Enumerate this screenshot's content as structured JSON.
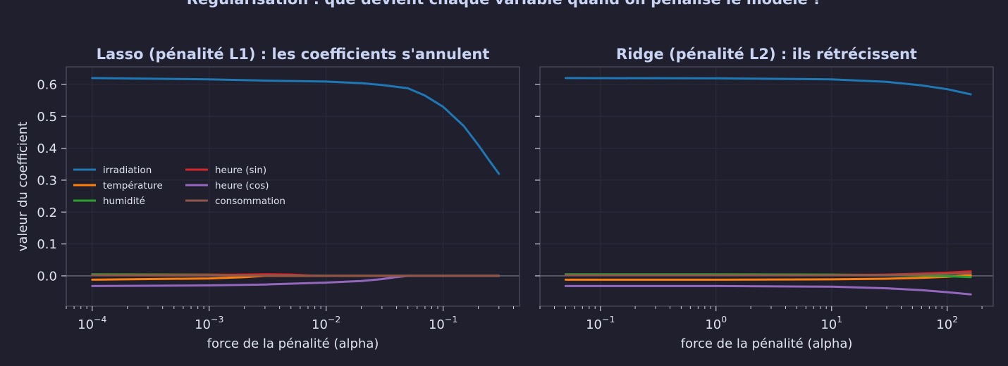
{
  "chart_data": {
    "title": "Régularisation : que devient chaque variable quand on pénalise le modèle ?",
    "series_colors": {
      "irradiation": "#1f77b4",
      "température": "#ff7f0e",
      "humidité": "#2ca02c",
      "heure (sin)": "#d62728",
      "heure (cos)": "#9467bd",
      "consommation": "#8c564b"
    },
    "legend_position": "center-left",
    "grid": true,
    "panels": [
      {
        "type": "line",
        "title": "Lasso (pénalité L1) : les coefficients s'annulent",
        "xlabel": "force de la pénalité (alpha)",
        "ylabel": "valeur du coefficient",
        "xscale": "log",
        "xlim": [
          6e-05,
          0.45
        ],
        "ylim": [
          -0.095,
          0.655
        ],
        "x_ticks": [
          {
            "value": 0.0001,
            "base": "10",
            "exp": "−4"
          },
          {
            "value": 0.001,
            "base": "10",
            "exp": "−3"
          },
          {
            "value": 0.01,
            "base": "10",
            "exp": "−2"
          },
          {
            "value": 0.1,
            "base": "10",
            "exp": "−1"
          }
        ],
        "y_ticks": [
          "0.0",
          "0.1",
          "0.2",
          "0.3",
          "0.4",
          "0.5",
          "0.6"
        ],
        "y_tick_values": [
          0,
          0.1,
          0.2,
          0.3,
          0.4,
          0.5,
          0.6
        ],
        "series": [
          {
            "name": "irradiation",
            "x": [
              0.0001,
              0.001,
              0.003,
              0.01,
              0.02,
              0.03,
              0.05,
              0.07,
              0.1,
              0.15,
              0.2,
              0.25,
              0.3
            ],
            "y": [
              0.62,
              0.616,
              0.612,
              0.609,
              0.604,
              0.598,
              0.588,
              0.565,
              0.53,
              0.47,
              0.41,
              0.36,
              0.32
            ]
          },
          {
            "name": "température",
            "x": [
              0.0001,
              0.001,
              0.002,
              0.003,
              0.01,
              0.3
            ],
            "y": [
              -0.012,
              -0.008,
              -0.004,
              0,
              0,
              0
            ]
          },
          {
            "name": "humidité",
            "x": [
              0.0001,
              0.001,
              0.003,
              0.01,
              0.3
            ],
            "y": [
              0.005,
              0.004,
              0.002,
              0,
              0
            ]
          },
          {
            "name": "heure (sin)",
            "x": [
              0.0001,
              0.001,
              0.002,
              0.003,
              0.005,
              0.008,
              0.3
            ],
            "y": [
              0.002,
              0.003,
              0.004,
              0.005,
              0.004,
              0,
              0
            ]
          },
          {
            "name": "heure (cos)",
            "x": [
              0.0001,
              0.001,
              0.003,
              0.01,
              0.02,
              0.03,
              0.04,
              0.05,
              0.3
            ],
            "y": [
              -0.032,
              -0.03,
              -0.027,
              -0.021,
              -0.016,
              -0.01,
              -0.004,
              0,
              0
            ]
          },
          {
            "name": "consommation",
            "x": [
              0.0001,
              0.001,
              0.003,
              0.01,
              0.3
            ],
            "y": [
              0.002,
              0.0015,
              0.001,
              0,
              0
            ]
          }
        ]
      },
      {
        "type": "line",
        "title": "Ridge (pénalité L2) : ils rétrécissent",
        "xlabel": "force de la pénalité (alpha)",
        "xscale": "log",
        "xlim": [
          0.03,
          250
        ],
        "ylim": [
          -0.095,
          0.655
        ],
        "x_ticks": [
          {
            "value": 0.1,
            "base": "10",
            "exp": "−1"
          },
          {
            "value": 1,
            "base": "10",
            "exp": "0"
          },
          {
            "value": 10,
            "base": "10",
            "exp": "1"
          },
          {
            "value": 100,
            "base": "10",
            "exp": "2"
          }
        ],
        "y_tick_values": [
          0,
          0.1,
          0.2,
          0.3,
          0.4,
          0.5,
          0.6
        ],
        "series": [
          {
            "name": "irradiation",
            "x": [
              0.05,
              1,
              10,
              30,
              60,
              100,
              160
            ],
            "y": [
              0.62,
              0.619,
              0.616,
              0.608,
              0.597,
              0.585,
              0.569
            ]
          },
          {
            "name": "température",
            "x": [
              0.05,
              1,
              10,
              30,
              60,
              100,
              160
            ],
            "y": [
              -0.012,
              -0.012,
              -0.011,
              -0.009,
              -0.006,
              -0.003,
              0.002
            ]
          },
          {
            "name": "humidité",
            "x": [
              0.05,
              1,
              10,
              30,
              60,
              100,
              160
            ],
            "y": [
              0.005,
              0.005,
              0.004,
              0.003,
              0.001,
              -0.001,
              -0.004
            ]
          },
          {
            "name": "heure (sin)",
            "x": [
              0.05,
              1,
              10,
              30,
              60,
              100,
              160
            ],
            "y": [
              0.002,
              0.002,
              0.002,
              0.004,
              0.007,
              0.01,
              0.014
            ]
          },
          {
            "name": "heure (cos)",
            "x": [
              0.05,
              1,
              10,
              30,
              60,
              100,
              160
            ],
            "y": [
              -0.032,
              -0.032,
              -0.034,
              -0.039,
              -0.045,
              -0.051,
              -0.058
            ]
          },
          {
            "name": "consommation",
            "x": [
              0.05,
              1,
              10,
              30,
              60,
              100,
              160
            ],
            "y": [
              0.002,
              0.002,
              0.002,
              0.003,
              0.004,
              0.006,
              0.008
            ]
          }
        ]
      }
    ]
  }
}
